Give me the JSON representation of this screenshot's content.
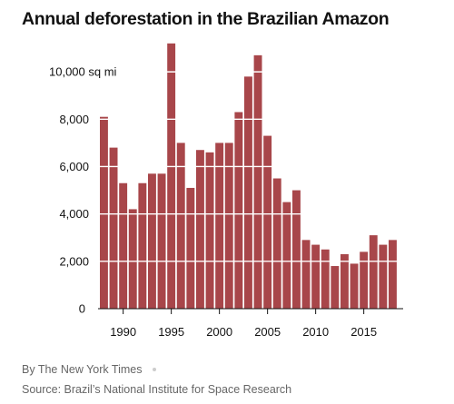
{
  "title": "Annual deforestation in the Brazilian Amazon",
  "byline": "By The New York Times",
  "source": "Source: Brazil’s National Institute for Space Research",
  "colors": {
    "bar": "#a8464a",
    "gridline": "#ffffff",
    "axis": "#121212",
    "footer_text": "#666666"
  },
  "chart_data": {
    "type": "bar",
    "x": [
      1988,
      1989,
      1990,
      1991,
      1992,
      1993,
      1994,
      1995,
      1996,
      1997,
      1998,
      1999,
      2000,
      2001,
      2002,
      2003,
      2004,
      2005,
      2006,
      2007,
      2008,
      2009,
      2010,
      2011,
      2012,
      2013,
      2014,
      2015,
      2016,
      2017,
      2018
    ],
    "values": [
      8100,
      6800,
      5300,
      4200,
      5300,
      5700,
      5700,
      11200,
      7000,
      5100,
      6700,
      6600,
      7000,
      7000,
      8300,
      9800,
      10700,
      7300,
      5500,
      4500,
      5000,
      2900,
      2700,
      2500,
      1800,
      2300,
      1900,
      2400,
      3100,
      2700,
      2900
    ],
    "ylim": [
      0,
      11500
    ],
    "y_ticks": [
      {
        "value": 0,
        "label": "0"
      },
      {
        "value": 2000,
        "label": "2,000"
      },
      {
        "value": 4000,
        "label": "4,000"
      },
      {
        "value": 6000,
        "label": "6,000"
      },
      {
        "value": 8000,
        "label": "8,000"
      },
      {
        "value": 10000,
        "label": "10,000 sq mi"
      }
    ],
    "x_ticks": [
      {
        "value": 1990,
        "label": "1990"
      },
      {
        "value": 1995,
        "label": "1995"
      },
      {
        "value": 2000,
        "label": "2000"
      },
      {
        "value": 2005,
        "label": "2005"
      },
      {
        "value": 2010,
        "label": "2010"
      },
      {
        "value": 2015,
        "label": "2015"
      }
    ],
    "grid": true,
    "xlabel": "",
    "ylabel": ""
  }
}
